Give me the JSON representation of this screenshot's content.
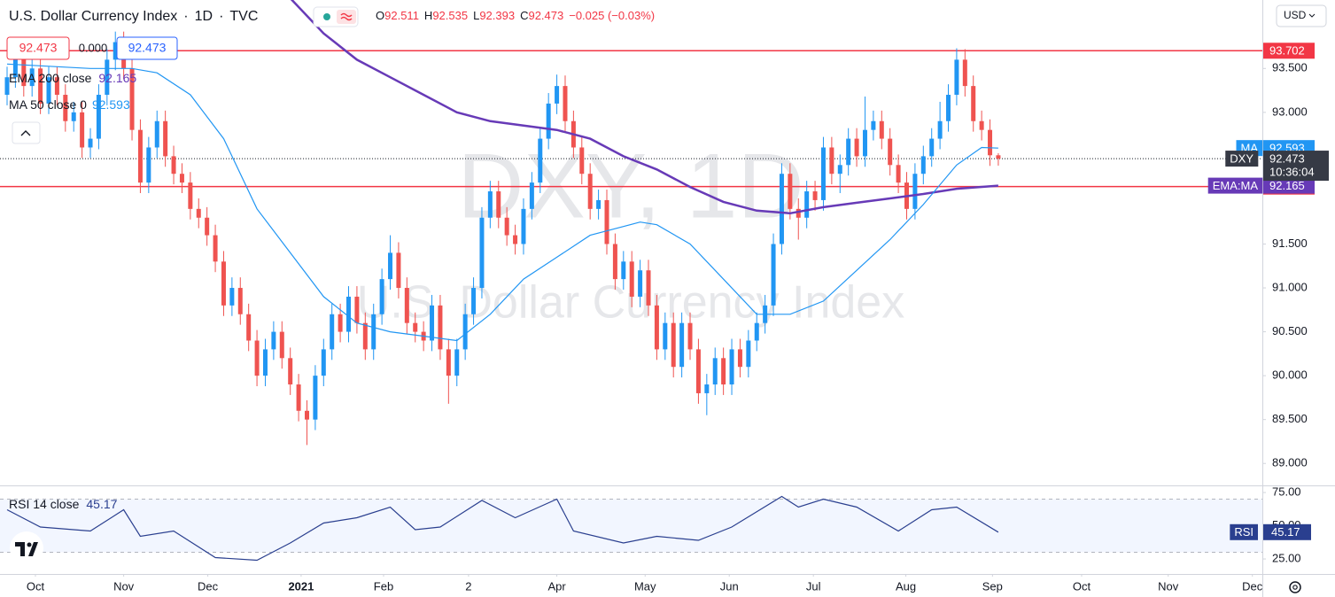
{
  "header": {
    "title": "U.S. Dollar Currency Index",
    "separator": "·",
    "interval": "1D",
    "source": "TVC",
    "ohlc_prefixes": [
      "O",
      "H",
      "L",
      "C"
    ],
    "change_label": "−0.025 (−0.03%)",
    "spread": {
      "value": 0,
      "label": "0.000"
    },
    "currency": "USD"
  },
  "chart_data": [
    {
      "type": "candlestick",
      "watermark": "DXY, 1D",
      "symbol": "DXY",
      "countdown": "10:36:04",
      "up_color": "#2196f3",
      "down_color": "#ef5350",
      "xlim": [
        -0.85,
        150.7
      ],
      "ylim": [
        88.75,
        94.28
      ],
      "grid": false,
      "yticks": [
        {
          "value": 89,
          "label": "89.000"
        },
        {
          "value": 89.5,
          "label": "89.500"
        },
        {
          "value": 90,
          "label": "90.000"
        },
        {
          "value": 90.5,
          "label": "90.500"
        },
        {
          "value": 91,
          "label": "91.000"
        },
        {
          "value": 91.5,
          "label": "91.500"
        },
        {
          "value": 93,
          "label": "93.000"
        },
        {
          "value": 93.5,
          "label": "93.500"
        }
      ],
      "xticks": [
        {
          "value": 3.4,
          "label": "Oct"
        },
        {
          "value": 14,
          "label": "Nov"
        },
        {
          "value": 24.1,
          "label": "Dec"
        },
        {
          "value": 35.3,
          "label": "2021"
        },
        {
          "value": 45.2,
          "label": "Feb"
        },
        {
          "value": 55.4,
          "label": "2"
        },
        {
          "value": 66,
          "label": "Apr"
        },
        {
          "value": 76.6,
          "label": "May"
        },
        {
          "value": 86.7,
          "label": "Jun"
        },
        {
          "value": 96.8,
          "label": "Jul"
        },
        {
          "value": 107.9,
          "label": "Aug"
        },
        {
          "value": 118.3,
          "label": "Sep"
        },
        {
          "value": 129,
          "label": "Oct"
        },
        {
          "value": 139.4,
          "label": "Nov"
        },
        {
          "value": 149.5,
          "label": "Dec"
        }
      ],
      "candles": [
        [
          93.2,
          93.52,
          93.08,
          93.4
        ],
        [
          93.4,
          93.82,
          93.28,
          93.7
        ],
        [
          93.7,
          93.82,
          93.18,
          93.3
        ],
        [
          93.3,
          93.62,
          93.18,
          93.5
        ],
        [
          93.5,
          93.62,
          92.98,
          93.1
        ],
        [
          93.1,
          93.52,
          92.98,
          93.4
        ],
        [
          93.4,
          93.52,
          93.08,
          93.2
        ],
        [
          93.2,
          93.32,
          92.78,
          92.9
        ],
        [
          92.9,
          93.12,
          92.78,
          93.0
        ],
        [
          93.0,
          93.12,
          92.48,
          92.6
        ],
        [
          92.6,
          92.82,
          92.48,
          92.7
        ],
        [
          92.7,
          93.32,
          92.58,
          93.2
        ],
        [
          93.2,
          93.72,
          93.08,
          93.6
        ],
        [
          93.6,
          93.92,
          93.48,
          93.8
        ],
        [
          93.8,
          93.92,
          93.38,
          93.5
        ],
        [
          93.5,
          93.62,
          92.68,
          92.8
        ],
        [
          92.8,
          92.92,
          92.08,
          92.2
        ],
        [
          92.2,
          92.72,
          92.08,
          92.6
        ],
        [
          92.6,
          93.02,
          92.48,
          92.9
        ],
        [
          92.9,
          93.02,
          92.38,
          92.5
        ],
        [
          92.5,
          92.62,
          92.18,
          92.3
        ],
        [
          92.3,
          92.42,
          92.08,
          92.2
        ],
        [
          92.2,
          92.32,
          91.78,
          91.9
        ],
        [
          91.9,
          92.02,
          91.68,
          91.8
        ],
        [
          91.8,
          91.92,
          91.48,
          91.6
        ],
        [
          91.6,
          91.72,
          91.18,
          91.3
        ],
        [
          91.3,
          91.42,
          90.68,
          90.8
        ],
        [
          90.8,
          91.12,
          90.68,
          91.0
        ],
        [
          91.0,
          91.12,
          90.58,
          90.7
        ],
        [
          90.7,
          90.82,
          90.28,
          90.4
        ],
        [
          90.4,
          90.52,
          89.88,
          90.0
        ],
        [
          90.0,
          90.42,
          89.88,
          90.3
        ],
        [
          90.3,
          90.62,
          90.18,
          90.5
        ],
        [
          90.5,
          90.62,
          90.08,
          90.2
        ],
        [
          90.2,
          90.32,
          89.78,
          89.9
        ],
        [
          89.9,
          90.02,
          89.48,
          89.6
        ],
        [
          89.6,
          89.72,
          89.21,
          89.5
        ],
        [
          89.5,
          90.12,
          89.38,
          90.0
        ],
        [
          90.0,
          90.42,
          89.88,
          90.3
        ],
        [
          90.3,
          90.82,
          90.18,
          90.7
        ],
        [
          90.7,
          90.82,
          90.38,
          90.5
        ],
        [
          90.5,
          91.02,
          90.38,
          90.9
        ],
        [
          90.9,
          91.02,
          90.48,
          90.6
        ],
        [
          90.6,
          90.72,
          90.18,
          90.3
        ],
        [
          90.3,
          90.82,
          90.18,
          90.7
        ],
        [
          90.7,
          91.22,
          90.58,
          91.1
        ],
        [
          91.1,
          91.6,
          90.98,
          91.4
        ],
        [
          91.4,
          91.52,
          90.88,
          91.0
        ],
        [
          91.0,
          91.12,
          90.48,
          90.6
        ],
        [
          90.6,
          90.72,
          90.38,
          90.5
        ],
        [
          90.5,
          90.62,
          90.28,
          90.4
        ],
        [
          90.4,
          90.92,
          90.28,
          90.8
        ],
        [
          90.8,
          90.92,
          90.18,
          90.3
        ],
        [
          90.3,
          90.42,
          89.68,
          90.0
        ],
        [
          90.0,
          90.42,
          89.88,
          90.3
        ],
        [
          90.3,
          90.82,
          90.18,
          90.7
        ],
        [
          90.7,
          91.12,
          90.58,
          91.0
        ],
        [
          91.0,
          91.92,
          90.88,
          91.8
        ],
        [
          91.8,
          92.22,
          91.68,
          92.1
        ],
        [
          92.1,
          92.22,
          91.68,
          91.8
        ],
        [
          91.8,
          91.92,
          91.48,
          91.6
        ],
        [
          91.6,
          91.72,
          91.38,
          91.5
        ],
        [
          91.5,
          92.02,
          91.38,
          91.9
        ],
        [
          91.9,
          92.32,
          91.78,
          92.2
        ],
        [
          92.2,
          92.82,
          92.08,
          92.7
        ],
        [
          92.7,
          93.22,
          92.58,
          93.1
        ],
        [
          93.1,
          93.43,
          92.98,
          93.3
        ],
        [
          93.3,
          93.42,
          92.78,
          92.9
        ],
        [
          92.9,
          93.02,
          92.48,
          92.6
        ],
        [
          92.6,
          92.72,
          92.18,
          92.3
        ],
        [
          92.3,
          92.42,
          91.78,
          91.9
        ],
        [
          91.9,
          92.12,
          91.78,
          92.0
        ],
        [
          92.0,
          92.12,
          91.38,
          91.5
        ],
        [
          91.5,
          91.62,
          90.98,
          91.1
        ],
        [
          91.1,
          91.42,
          90.98,
          91.3
        ],
        [
          91.3,
          91.42,
          90.78,
          90.9
        ],
        [
          90.9,
          91.32,
          90.78,
          91.2
        ],
        [
          91.2,
          91.32,
          90.68,
          90.8
        ],
        [
          90.8,
          90.92,
          90.18,
          90.3
        ],
        [
          90.3,
          90.72,
          90.18,
          90.6
        ],
        [
          90.6,
          90.72,
          89.98,
          90.1
        ],
        [
          90.1,
          90.72,
          89.98,
          90.6
        ],
        [
          90.6,
          90.72,
          90.18,
          90.3
        ],
        [
          90.3,
          90.42,
          89.68,
          89.8
        ],
        [
          89.8,
          90.02,
          89.55,
          89.9
        ],
        [
          89.9,
          90.32,
          89.78,
          90.2
        ],
        [
          90.2,
          90.32,
          89.78,
          89.9
        ],
        [
          89.9,
          90.42,
          89.78,
          90.3
        ],
        [
          90.3,
          90.42,
          89.98,
          90.1
        ],
        [
          90.1,
          90.52,
          89.98,
          90.4
        ],
        [
          90.4,
          90.72,
          90.28,
          90.6
        ],
        [
          90.6,
          90.92,
          90.48,
          90.8
        ],
        [
          90.8,
          91.62,
          90.68,
          91.5
        ],
        [
          91.5,
          92.42,
          91.38,
          92.3
        ],
        [
          92.3,
          92.42,
          91.78,
          91.9
        ],
        [
          91.9,
          92.02,
          91.55,
          91.8
        ],
        [
          91.8,
          92.22,
          91.68,
          92.1
        ],
        [
          92.1,
          92.22,
          91.88,
          92.0
        ],
        [
          92.0,
          92.72,
          91.88,
          92.6
        ],
        [
          92.6,
          92.72,
          92.18,
          92.3
        ],
        [
          92.3,
          92.52,
          92.08,
          92.4
        ],
        [
          92.4,
          92.82,
          92.28,
          92.7
        ],
        [
          92.7,
          92.82,
          92.38,
          92.5
        ],
        [
          92.5,
          93.18,
          92.38,
          92.8
        ],
        [
          92.8,
          93.02,
          92.68,
          92.9
        ],
        [
          92.9,
          93.02,
          92.58,
          92.7
        ],
        [
          92.7,
          92.82,
          92.28,
          92.4
        ],
        [
          92.4,
          92.52,
          92.08,
          92.2
        ],
        [
          92.2,
          92.32,
          91.78,
          91.9
        ],
        [
          91.9,
          92.42,
          91.78,
          92.3
        ],
        [
          92.3,
          92.62,
          92.18,
          92.5
        ],
        [
          92.5,
          92.82,
          92.38,
          92.7
        ],
        [
          92.7,
          93.12,
          92.58,
          92.9
        ],
        [
          92.9,
          93.32,
          92.78,
          93.2
        ],
        [
          93.2,
          93.73,
          93.08,
          93.6
        ],
        [
          93.6,
          93.72,
          93.18,
          93.3
        ],
        [
          93.3,
          93.42,
          92.78,
          92.9
        ],
        [
          92.9,
          93.02,
          92.68,
          92.8
        ],
        [
          92.8,
          92.92,
          92.39,
          92.511
        ],
        [
          92.511,
          92.535,
          92.393,
          92.473
        ]
      ],
      "series": [
        {
          "name": "EMA 200 close",
          "tag": "EMA:MA",
          "color": "#673ab7",
          "x": [
            34,
            38,
            42,
            46,
            50,
            54,
            58,
            62,
            66,
            70,
            74,
            78,
            82,
            86,
            90,
            94,
            98,
            102,
            106,
            110,
            114,
            119
          ],
          "values": [
            94.3,
            93.9,
            93.6,
            93.4,
            93.2,
            93.0,
            92.9,
            92.85,
            92.8,
            92.7,
            92.5,
            92.35,
            92.15,
            91.98,
            91.88,
            91.85,
            91.92,
            91.97,
            92.02,
            92.07,
            92.13,
            92.165
          ]
        },
        {
          "name": "MA 50 close 0",
          "tag": "MA",
          "color": "#2196f3",
          "x": [
            0,
            10,
            15,
            18,
            22,
            26,
            30,
            34,
            38,
            42,
            46,
            50,
            54,
            58,
            62,
            66,
            70,
            74,
            76,
            78,
            82,
            86,
            90,
            94,
            98,
            102,
            106,
            110,
            114,
            117,
            119
          ],
          "values": [
            93.55,
            93.5,
            93.5,
            93.45,
            93.2,
            92.7,
            91.9,
            91.4,
            90.9,
            90.6,
            90.5,
            90.45,
            90.4,
            90.7,
            91.1,
            91.35,
            91.6,
            91.7,
            91.75,
            91.72,
            91.5,
            91.1,
            90.7,
            90.7,
            90.85,
            91.2,
            91.55,
            91.95,
            92.4,
            92.6,
            92.593
          ]
        }
      ],
      "hlines": [
        {
          "value": 93.702,
          "color": "#f23645"
        },
        {
          "value": 92.154,
          "color": "#f23645"
        }
      ]
    },
    {
      "type": "line",
      "name": "RSI 14 close",
      "tag": "RSI",
      "color": "#2a3f8f",
      "ylim": [
        13.7,
        79.7
      ],
      "yticks": [
        {
          "value": 75,
          "label": "75.00"
        },
        {
          "value": 50,
          "label": "50.00"
        },
        {
          "value": 25,
          "label": "25.00"
        }
      ],
      "band": [
        30,
        70
      ],
      "x": [
        0,
        4,
        10,
        14,
        16,
        20,
        25,
        30,
        34,
        38,
        42,
        46,
        49,
        52,
        57,
        61,
        66,
        68,
        74,
        78,
        83,
        87,
        93,
        95,
        98,
        102,
        107,
        111,
        114,
        119
      ],
      "values": [
        62,
        49,
        46,
        62,
        42,
        46,
        26,
        24,
        37,
        52,
        56,
        64,
        47,
        49,
        69,
        56,
        70,
        46,
        37,
        42,
        39,
        49,
        72,
        64,
        70,
        64,
        46,
        62,
        64,
        45.17
      ]
    }
  ]
}
